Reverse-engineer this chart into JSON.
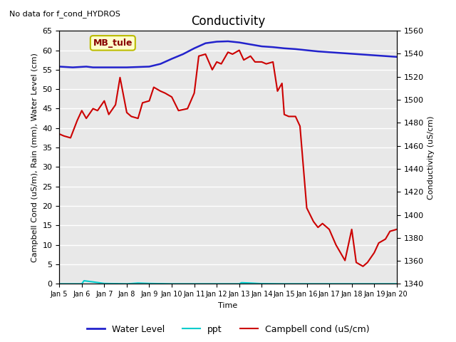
{
  "title": "Conductivity",
  "top_left_text": "No data for f_cond_HYDROS",
  "xlabel": "Time",
  "ylabel_left": "Campbell Cond (uS/m), Rain (mm), Water Level (cm)",
  "ylabel_right": "Conductivity (uS/cm)",
  "ylim_left": [
    0,
    65
  ],
  "ylim_right": [
    1340,
    1560
  ],
  "bg_bands": [
    [
      0,
      5,
      "#f0f0f0"
    ],
    [
      5,
      10,
      "#ffffff"
    ],
    [
      10,
      15,
      "#f0f0f0"
    ],
    [
      15,
      20,
      "#ffffff"
    ],
    [
      20,
      25,
      "#f0f0f0"
    ],
    [
      25,
      30,
      "#ffffff"
    ],
    [
      30,
      35,
      "#f0f0f0"
    ],
    [
      35,
      40,
      "#ffffff"
    ],
    [
      40,
      45,
      "#f0f0f0"
    ],
    [
      45,
      50,
      "#ffffff"
    ],
    [
      50,
      55,
      "#f0f0f0"
    ],
    [
      55,
      60,
      "#ffffff"
    ],
    [
      60,
      65,
      "#f0f0f0"
    ]
  ],
  "legend_box_label": "MB_tule",
  "legend_box_color": "#ffffcc",
  "legend_box_edge": "#bbbb00",
  "legend_text_color": "#880000",
  "x_tick_labels": [
    "Jan 5",
    "Jan 6",
    "Jan 7",
    "Jan 8",
    "Jan 9",
    "Jan 10",
    "Jan 11",
    "Jan 12",
    "Jan 13",
    "Jan 14",
    "Jan 15",
    "Jan 16",
    "Jan 17",
    "Jan 18",
    "Jan 19",
    "Jan 20"
  ],
  "water_level_x": [
    0,
    0.3,
    0.6,
    0.9,
    1.2,
    1.5,
    1.8,
    2.0,
    2.3,
    2.6,
    3.0,
    3.5,
    4.0,
    4.5,
    5.0,
    5.5,
    6.0,
    6.5,
    7.0,
    7.5,
    8.0,
    8.5,
    9.0,
    9.5,
    10.0,
    10.5,
    11.0,
    11.5,
    12.0,
    12.5,
    13.0,
    13.5,
    14.0,
    14.5,
    15.0
  ],
  "water_level_y": [
    55.8,
    55.7,
    55.6,
    55.7,
    55.8,
    55.6,
    55.6,
    55.6,
    55.6,
    55.6,
    55.6,
    55.7,
    55.8,
    56.5,
    57.8,
    59.0,
    60.5,
    61.8,
    62.2,
    62.3,
    62.0,
    61.5,
    61.0,
    60.8,
    60.5,
    60.3,
    60.0,
    59.7,
    59.5,
    59.3,
    59.1,
    58.9,
    58.7,
    58.5,
    58.3
  ],
  "ppt_x": [
    0,
    1.0,
    1.1,
    1.5,
    2.0,
    3.0,
    3.5,
    4.0,
    5.0,
    8.0,
    8.1,
    8.5,
    9.0,
    10.0,
    11.0,
    12.0,
    13.0,
    14.0,
    15.0
  ],
  "ppt_y": [
    0.0,
    0.0,
    0.8,
    0.5,
    0.1,
    0.0,
    0.2,
    0.1,
    0.0,
    0.0,
    0.3,
    0.2,
    0.05,
    0.0,
    0.0,
    0.0,
    0.0,
    0.0,
    0.0
  ],
  "campbell_x": [
    0,
    0.2,
    0.5,
    0.8,
    1.0,
    1.2,
    1.5,
    1.7,
    2.0,
    2.2,
    2.5,
    2.7,
    3.0,
    3.2,
    3.5,
    3.7,
    4.0,
    4.2,
    4.5,
    4.7,
    5.0,
    5.3,
    5.7,
    6.0,
    6.2,
    6.5,
    6.8,
    7.0,
    7.2,
    7.5,
    7.7,
    8.0,
    8.2,
    8.5,
    8.7,
    9.0,
    9.2,
    9.5,
    9.7,
    9.9,
    10.0,
    10.2,
    10.5,
    10.7,
    11.0,
    11.3,
    11.5,
    11.7,
    12.0,
    12.3,
    12.5,
    12.7,
    13.0,
    13.2,
    13.5,
    13.7,
    14.0,
    14.2,
    14.5,
    14.7,
    15.0
  ],
  "campbell_y": [
    38.5,
    38.0,
    37.5,
    42.0,
    44.5,
    42.5,
    45.0,
    44.5,
    47.0,
    43.5,
    46.0,
    53.0,
    44.0,
    43.0,
    42.5,
    46.5,
    47.0,
    50.5,
    49.5,
    49.0,
    48.0,
    44.5,
    45.0,
    49.0,
    58.5,
    59.0,
    55.0,
    57.0,
    56.5,
    59.5,
    59.0,
    60.0,
    57.5,
    58.5,
    57.0,
    57.0,
    56.5,
    57.0,
    49.5,
    51.5,
    43.5,
    43.0,
    43.0,
    40.5,
    19.5,
    16.0,
    14.5,
    15.5,
    14.0,
    10.0,
    8.0,
    6.0,
    14.0,
    5.5,
    4.5,
    5.5,
    8.0,
    10.5,
    11.5,
    13.5,
    14.0
  ],
  "water_color": "#2222cc",
  "ppt_color": "#00cccc",
  "campbell_color": "#cc0000",
  "grid_color": "#cccccc",
  "title_fontsize": 12,
  "axis_fontsize": 8,
  "tick_fontsize": 8,
  "legend_fontsize": 9
}
